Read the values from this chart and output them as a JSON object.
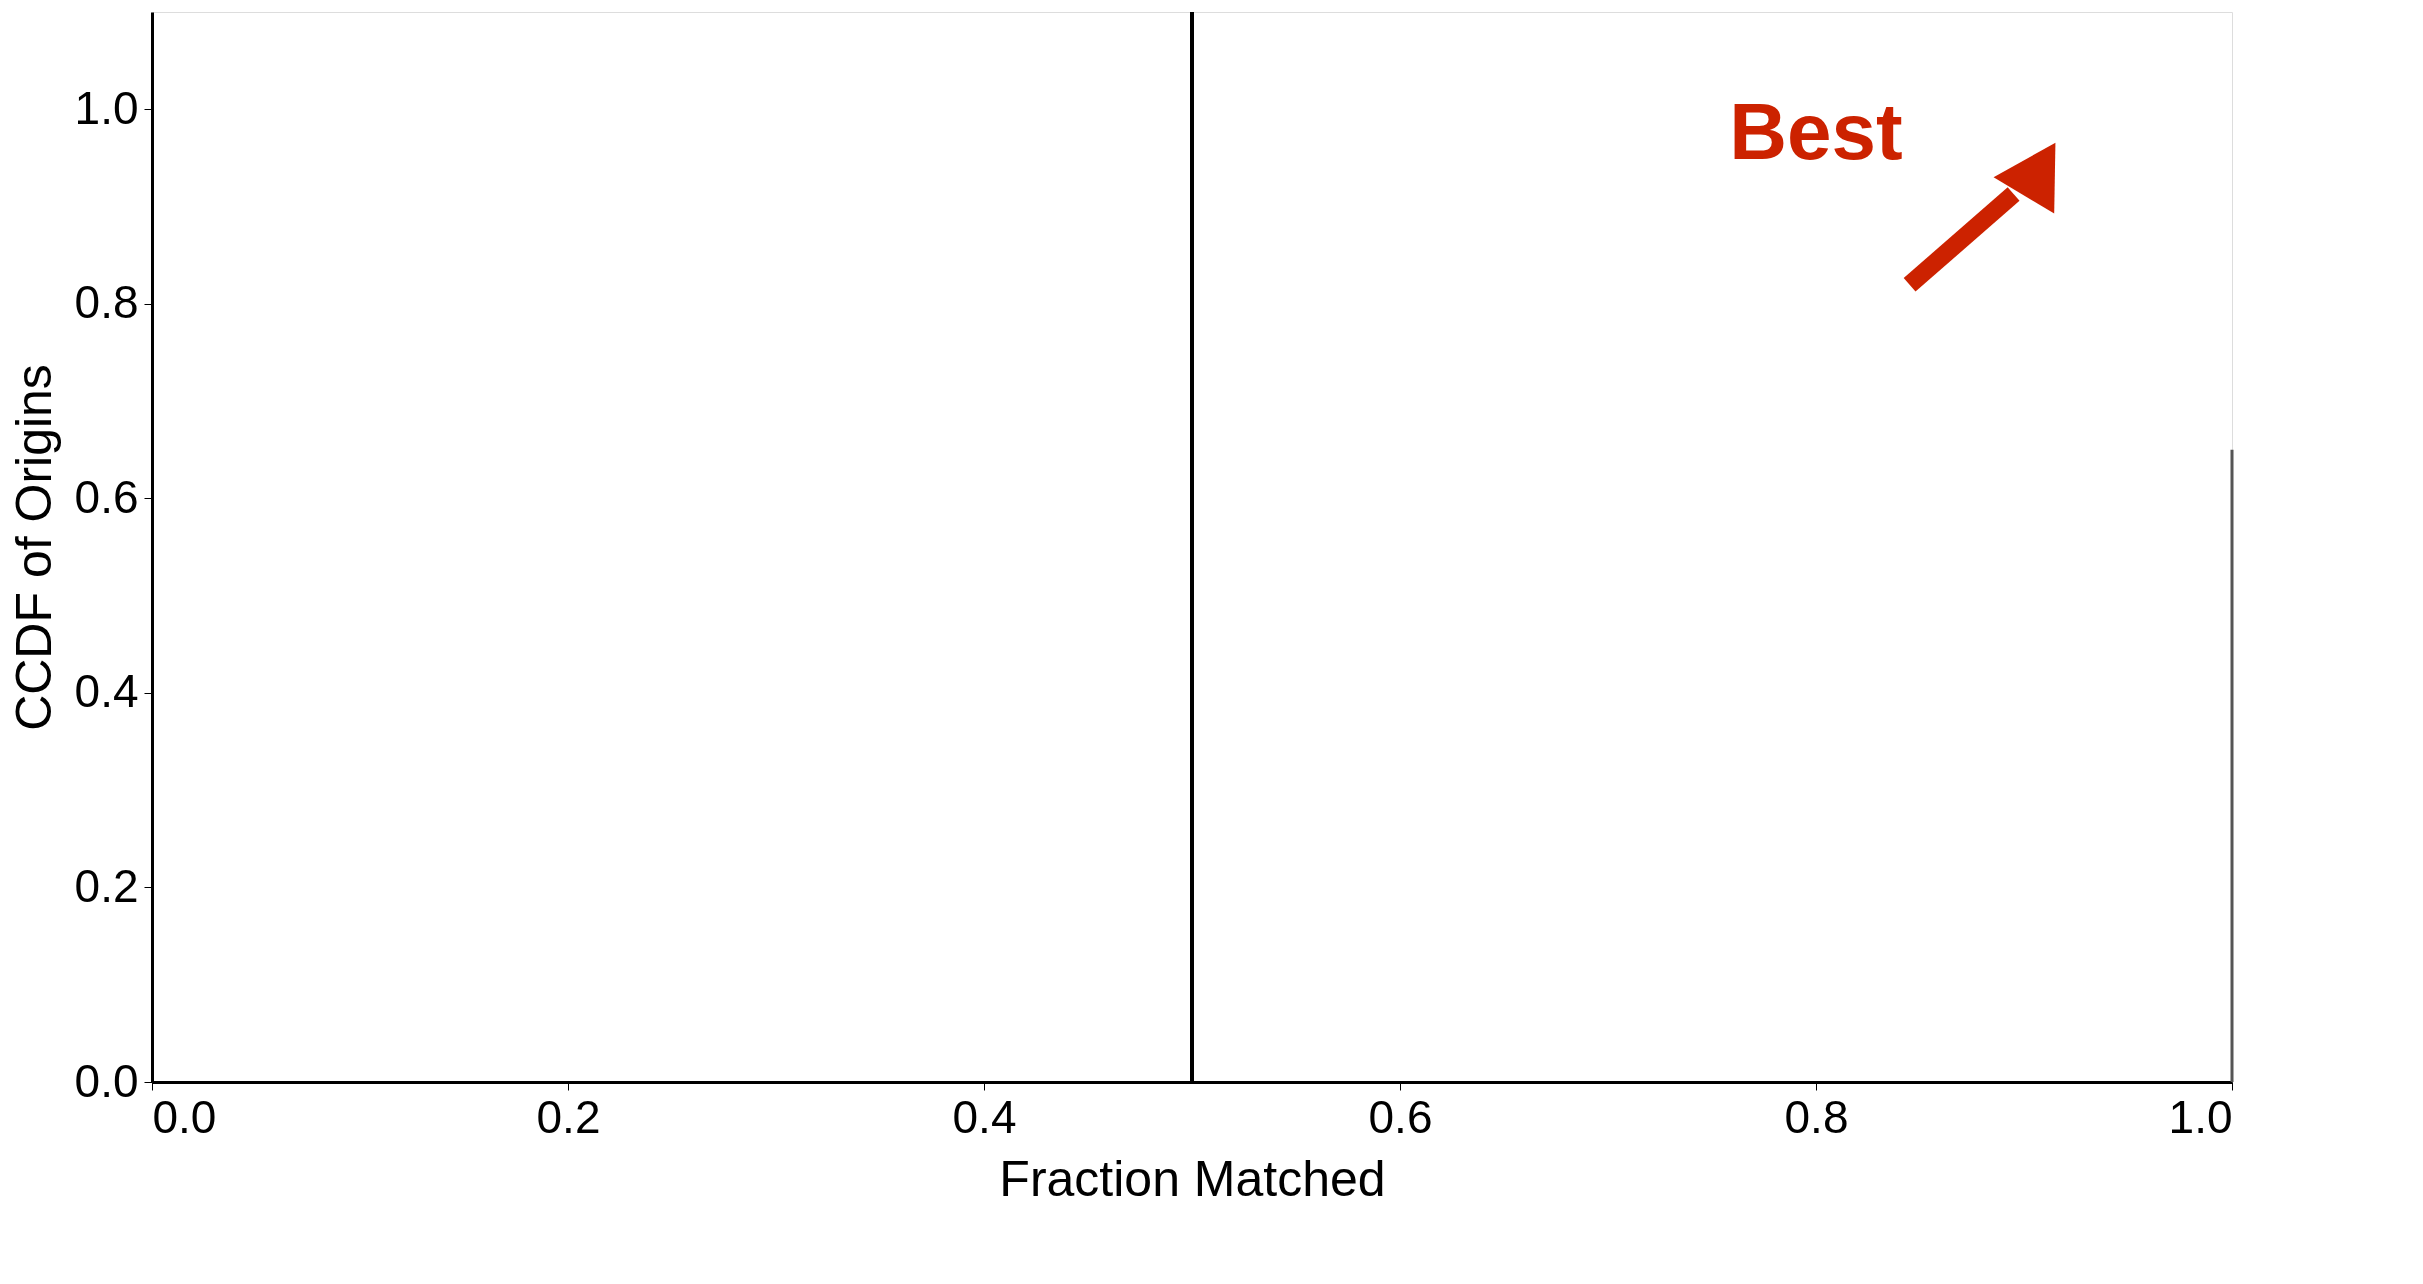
{
  "chart_data": {
    "type": "line",
    "xlabel": "Fraction Matched",
    "ylabel": "CCDF of Origins",
    "series": [
      {
        "color": "#555555",
        "x": [
          1.0,
          1.0
        ],
        "values": [
          0.65,
          0.0
        ]
      }
    ],
    "xlim": [
      0,
      1
    ],
    "ylim": [
      0,
      1.1
    ],
    "xticks": [
      {
        "value": 0,
        "label": "0.0"
      },
      0.2,
      0.4,
      0.6,
      0.8,
      {
        "value": 1,
        "label": "1.0"
      }
    ],
    "yticks": [
      {
        "value": 0,
        "label": "0.0"
      },
      0.2,
      0.4,
      0.6,
      0.8,
      {
        "value": 1,
        "label": "1.0"
      }
    ],
    "ref_lines": [
      {
        "axis": "x",
        "value": 0.5,
        "color": "#000000"
      }
    ],
    "annotations": [
      "Best"
    ],
    "grid": false,
    "marker": "none",
    "line_style": "solid"
  }
}
